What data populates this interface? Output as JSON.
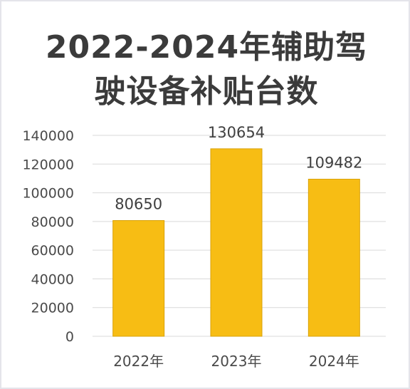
{
  "colors": {
    "bar": "#f7bd14",
    "bar_edge": "#d9a20a",
    "grid": "#d9d9d9",
    "title": "#3b3b3b"
  },
  "chart_data": {
    "type": "bar",
    "title": "2022-2024年辅助驾驶设备补贴台数",
    "title_lines": [
      "2022-2024年辅助驾",
      "驶设备补贴台数"
    ],
    "categories": [
      "2022年",
      "2023年",
      "2024年"
    ],
    "values": [
      80650,
      130654,
      109482
    ],
    "data_labels": [
      "80650",
      "130654",
      "109482"
    ],
    "ylim": [
      0,
      140000
    ],
    "yticks": [
      0,
      20000,
      40000,
      60000,
      80000,
      100000,
      120000,
      140000
    ],
    "ytick_labels": [
      "0",
      "20000",
      "40000",
      "60000",
      "80000",
      "100000",
      "120000",
      "140000"
    ],
    "grid": true,
    "legend": "none",
    "xlabel": "",
    "ylabel": ""
  }
}
